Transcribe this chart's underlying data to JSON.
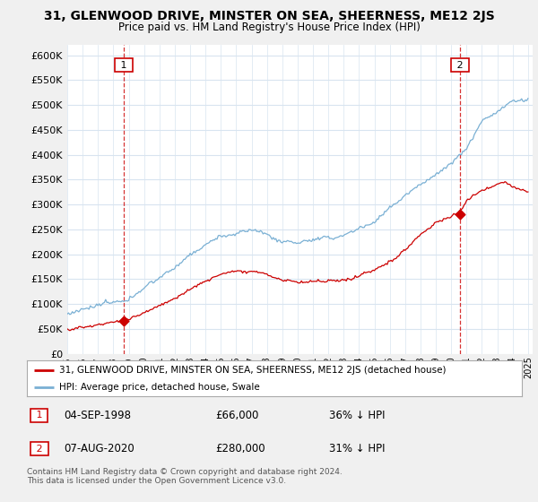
{
  "title": "31, GLENWOOD DRIVE, MINSTER ON SEA, SHEERNESS, ME12 2JS",
  "subtitle": "Price paid vs. HM Land Registry's House Price Index (HPI)",
  "red_label": "31, GLENWOOD DRIVE, MINSTER ON SEA, SHEERNESS, ME12 2JS (detached house)",
  "blue_label": "HPI: Average price, detached house, Swale",
  "annotation1_date": "04-SEP-1998",
  "annotation1_price": "£66,000",
  "annotation1_hpi": "36% ↓ HPI",
  "annotation2_date": "07-AUG-2020",
  "annotation2_price": "£280,000",
  "annotation2_hpi": "31% ↓ HPI",
  "footnote": "Contains HM Land Registry data © Crown copyright and database right 2024.\nThis data is licensed under the Open Government Licence v3.0.",
  "ylim": [
    0,
    620000
  ],
  "yticks": [
    0,
    50000,
    100000,
    150000,
    200000,
    250000,
    300000,
    350000,
    400000,
    450000,
    500000,
    550000,
    600000
  ],
  "background_color": "#f0f0f0",
  "plot_bg": "#ffffff",
  "red_color": "#cc0000",
  "blue_color": "#7ab0d4",
  "vline_color": "#cc0000",
  "point1_x": 1998.67,
  "point1_y": 66000,
  "point2_x": 2020.58,
  "point2_y": 280000,
  "xmin": 1995.0,
  "xmax": 2025.3
}
